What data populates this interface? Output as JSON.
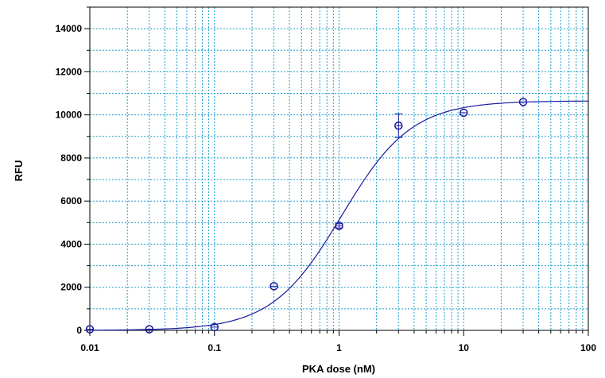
{
  "chart_data": {
    "type": "scatter",
    "xlabel": "PKA dose (nM)",
    "ylabel": "RFU",
    "x_scale": "log",
    "xlim": [
      0.01,
      100
    ],
    "ylim": [
      0,
      15000
    ],
    "x_ticks": [
      0.01,
      0.1,
      1,
      10,
      100
    ],
    "x_tick_labels": [
      "0.01",
      "0.1",
      "1",
      "10",
      "100"
    ],
    "y_ticks": [
      0,
      2000,
      4000,
      6000,
      8000,
      10000,
      12000,
      14000
    ],
    "y_tick_labels": [
      "0",
      "2000",
      "4000",
      "6000",
      "8000",
      "10000",
      "12000",
      "14000"
    ],
    "grid": true,
    "grid_color": "#1a9fd0",
    "series_color": "#1a1aa0",
    "series": [
      {
        "points": [
          {
            "x": 0.01,
            "y": 50,
            "err": 0
          },
          {
            "x": 0.03,
            "y": 50,
            "err": 0
          },
          {
            "x": 0.1,
            "y": 150,
            "err": 0
          },
          {
            "x": 0.3,
            "y": 2050,
            "err": 0
          },
          {
            "x": 1,
            "y": 4850,
            "err": 100
          },
          {
            "x": 3,
            "y": 9500,
            "err": 550
          },
          {
            "x": 10,
            "y": 10100,
            "err": 0
          },
          {
            "x": 30,
            "y": 10600,
            "err": 0
          }
        ],
        "fit": {
          "model": "four-parameter logistic",
          "bottom": 0,
          "top": 10650,
          "ec50": 1.05,
          "hill": 1.55
        }
      }
    ]
  }
}
